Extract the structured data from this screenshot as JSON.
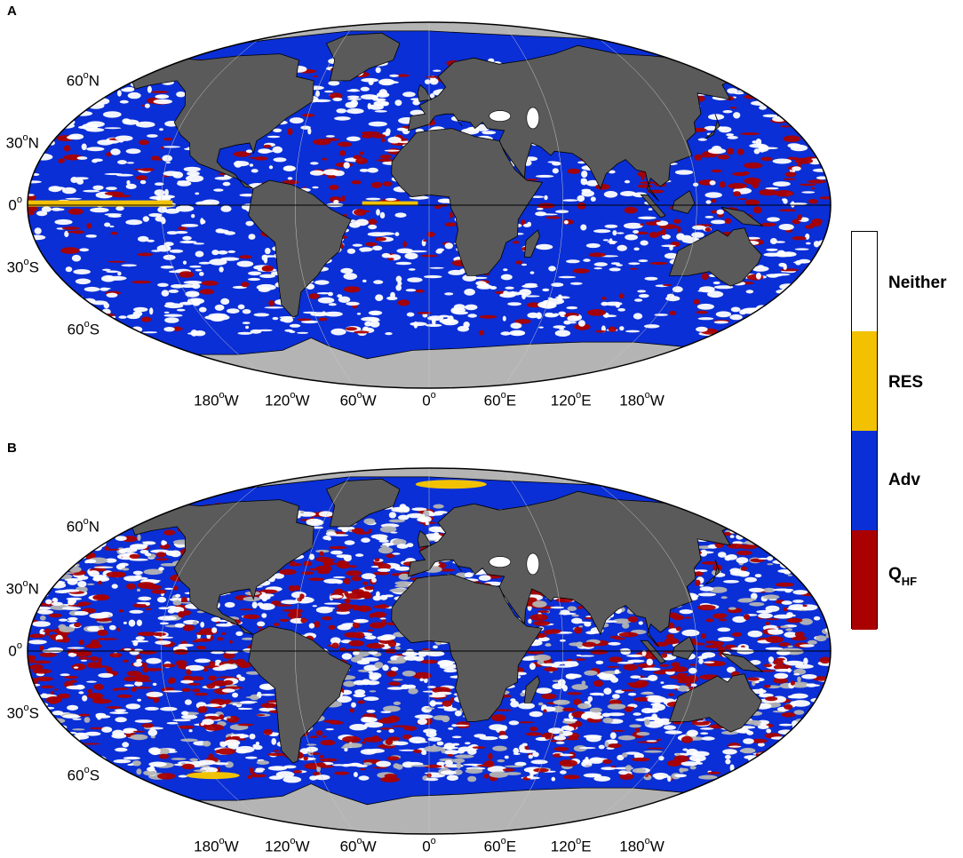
{
  "panels": [
    {
      "letter": "A",
      "lat_labels": [
        {
          "deg": "60",
          "hemi": "N"
        },
        {
          "deg": "30",
          "hemi": "N"
        },
        {
          "deg": "0",
          "hemi": ""
        },
        {
          "deg": "30",
          "hemi": "S"
        },
        {
          "deg": "60",
          "hemi": "S"
        }
      ],
      "lon_labels": [
        {
          "deg": "180",
          "hemi": "W"
        },
        {
          "deg": "120",
          "hemi": "W"
        },
        {
          "deg": "60",
          "hemi": "W"
        },
        {
          "deg": "0",
          "hemi": ""
        },
        {
          "deg": "60",
          "hemi": "E"
        },
        {
          "deg": "120",
          "hemi": "E"
        },
        {
          "deg": "180",
          "hemi": "W"
        }
      ]
    },
    {
      "letter": "B",
      "lat_labels": [
        {
          "deg": "60",
          "hemi": "N"
        },
        {
          "deg": "30",
          "hemi": "N"
        },
        {
          "deg": "0",
          "hemi": ""
        },
        {
          "deg": "30",
          "hemi": "S"
        },
        {
          "deg": "60",
          "hemi": "S"
        }
      ],
      "lon_labels": [
        {
          "deg": "180",
          "hemi": "W"
        },
        {
          "deg": "120",
          "hemi": "W"
        },
        {
          "deg": "60",
          "hemi": "W"
        },
        {
          "deg": "0",
          "hemi": ""
        },
        {
          "deg": "60",
          "hemi": "E"
        },
        {
          "deg": "120",
          "hemi": "E"
        },
        {
          "deg": "180",
          "hemi": "W"
        }
      ]
    }
  ],
  "legend": {
    "categories": [
      {
        "label": "Neither",
        "sub": "",
        "color": "#ffffff"
      },
      {
        "label": "RES",
        "sub": "",
        "color": "#f2c200"
      },
      {
        "label": "Adv",
        "sub": "",
        "color": "#0a2fd6"
      },
      {
        "label": "Q",
        "sub": "HF",
        "color": "#aa0000"
      }
    ]
  },
  "colors": {
    "land": "#5a5a5a",
    "ice": "#b4b4b4",
    "ocean_base": "#0a2fd6",
    "neither": "#ffffff",
    "res": "#f2c200",
    "qhf": "#aa0000"
  }
}
